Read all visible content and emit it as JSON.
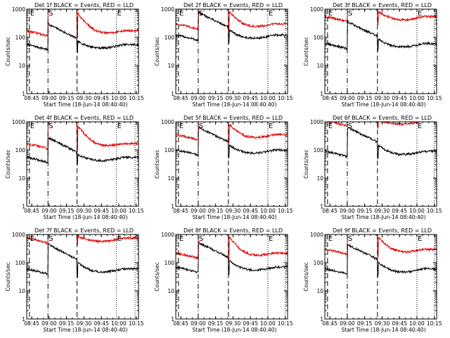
{
  "figure": {
    "background": "#ffffff",
    "colors": {
      "events": "#000000",
      "lld": "#e00000",
      "axes": "#000000"
    }
  },
  "chart_data": [
    {
      "type": "line",
      "title": "Det 1f BLACK = Events, RED = LLD",
      "xlabel": "Start Time (18-Jun-14 08:40:40)",
      "ylabel": "Counts/sec",
      "yscale": "log",
      "ylim": [
        1,
        1000
      ],
      "x_ticks": [
        "08:45",
        "09:00",
        "09:15",
        "09:30",
        "09:45",
        "10:00",
        "10:15"
      ],
      "y_ticks": [
        "1",
        "10",
        "100",
        "1000"
      ],
      "markers": [
        {
          "label": "E",
          "time": "08:43",
          "style": "dash"
        },
        {
          "label": "S",
          "time": "08:59",
          "style": "dashdot"
        },
        {
          "label": "",
          "time": "09:24",
          "style": "dash"
        },
        {
          "label": "E",
          "time": "09:58",
          "style": "dot"
        },
        {
          "label": "",
          "time": "10:14",
          "style": "dot"
        }
      ],
      "series": [
        {
          "name": "Events",
          "color": "#000000",
          "baseline": 55,
          "spike_time": "09:24",
          "spike_value": 75
        },
        {
          "name": "LLD",
          "color": "#e00000",
          "baseline": 170,
          "spike_time": "09:24",
          "spike_value": 800
        }
      ]
    },
    {
      "type": "line",
      "title": "Det 2f BLACK = Events, RED = LLD",
      "xlabel": "Start Time (18-Jun-14 08:40:40)",
      "ylabel": "Counts/sec",
      "yscale": "log",
      "ylim": [
        1,
        1000
      ],
      "x_ticks": [
        "08:45",
        "09:00",
        "09:15",
        "09:30",
        "09:45",
        "10:00",
        "10:15"
      ],
      "y_ticks": [
        "1",
        "10",
        "100",
        "1000"
      ],
      "markers": [
        {
          "label": "E",
          "time": "08:43",
          "style": "dash"
        },
        {
          "label": "S",
          "time": "09:00",
          "style": "dashdot"
        },
        {
          "label": "",
          "time": "09:26",
          "style": "dash"
        },
        {
          "label": "E",
          "time": "10:00",
          "style": "dot"
        },
        {
          "label": "",
          "time": "10:15",
          "style": "dot"
        }
      ],
      "series": [
        {
          "name": "Events",
          "color": "#000000",
          "baseline": 120,
          "spike_time": "09:26",
          "spike_value": 190
        },
        {
          "name": "LLD",
          "color": "#e00000",
          "baseline": 300,
          "spike_time": "09:26",
          "spike_value": 900
        }
      ]
    },
    {
      "type": "line",
      "title": "Det 3f BLACK = Events, RED = LLD",
      "xlabel": "Start Time (18-Jun-14 08:40:40)",
      "ylabel": "Counts/sec",
      "yscale": "log",
      "ylim": [
        1,
        1000
      ],
      "x_ticks": [
        "08:45",
        "09:00",
        "09:15",
        "09:30",
        "09:45",
        "10:00",
        "10:15"
      ],
      "y_ticks": [
        "1",
        "10",
        "100",
        "1000"
      ],
      "markers": [
        {
          "label": "E",
          "time": "08:43",
          "style": "dash"
        },
        {
          "label": "S",
          "time": "09:00",
          "style": "dashdot"
        },
        {
          "label": "",
          "time": "09:26",
          "style": "dash"
        },
        {
          "label": "E",
          "time": "10:00",
          "style": "dot"
        },
        {
          "label": "",
          "time": "10:15",
          "style": "dot"
        }
      ],
      "series": [
        {
          "name": "Events",
          "color": "#000000",
          "baseline": 60,
          "spike_time": "09:26",
          "spike_value": 90
        },
        {
          "name": "LLD",
          "color": "#e00000",
          "baseline": 550,
          "spike_time": "09:26",
          "spike_value": 900
        }
      ]
    },
    {
      "type": "line",
      "title": "Det 4f BLACK = Events, RED = LLD",
      "xlabel": "Start Time (18-Jun-14 08:40:40)",
      "ylabel": "Counts/sec",
      "yscale": "log",
      "ylim": [
        1,
        1000
      ],
      "x_ticks": [
        "08:45",
        "09:00",
        "09:15",
        "09:30",
        "09:45",
        "10:00",
        "10:15"
      ],
      "y_ticks": [
        "1",
        "10",
        "100",
        "1000"
      ],
      "markers": [
        {
          "label": "E",
          "time": "08:43",
          "style": "dash"
        },
        {
          "label": "S",
          "time": "08:59",
          "style": "dashdot"
        },
        {
          "label": "",
          "time": "09:24",
          "style": "dash"
        },
        {
          "label": "E",
          "time": "09:58",
          "style": "dot"
        },
        {
          "label": "",
          "time": "10:14",
          "style": "dot"
        }
      ],
      "series": [
        {
          "name": "Events",
          "color": "#000000",
          "baseline": 55,
          "spike_time": "09:24",
          "spike_value": 70
        },
        {
          "name": "LLD",
          "color": "#e00000",
          "baseline": 170,
          "spike_time": "09:24",
          "spike_value": 800
        }
      ]
    },
    {
      "type": "line",
      "title": "Det 5f BLACK = Events, RED = LLD",
      "xlabel": "Start Time (18-Jun-14 08:40:40)",
      "ylabel": "Counts/sec",
      "yscale": "log",
      "ylim": [
        1,
        1000
      ],
      "x_ticks": [
        "08:45",
        "09:00",
        "09:15",
        "09:30",
        "09:45",
        "10:00",
        "10:15"
      ],
      "y_ticks": [
        "1",
        "10",
        "100",
        "1000"
      ],
      "markers": [
        {
          "label": "E",
          "time": "08:43",
          "style": "dash"
        },
        {
          "label": "S",
          "time": "09:00",
          "style": "dashdot"
        },
        {
          "label": "",
          "time": "09:26",
          "style": "dash"
        },
        {
          "label": "E",
          "time": "10:00",
          "style": "dot"
        },
        {
          "label": "",
          "time": "10:15",
          "style": "dot"
        }
      ],
      "series": [
        {
          "name": "Events",
          "color": "#000000",
          "baseline": 100,
          "spike_time": "09:26",
          "spike_value": 160
        },
        {
          "name": "LLD",
          "color": "#e00000",
          "baseline": 350,
          "spike_time": "09:26",
          "spike_value": 900
        }
      ]
    },
    {
      "type": "line",
      "title": "Det 6f BLACK = Events, RED = LLD",
      "xlabel": "Start Time (18-Jun-14 08:40:40)",
      "ylabel": "Counts/sec",
      "yscale": "log",
      "ylim": [
        1,
        1000
      ],
      "x_ticks": [
        "08:45",
        "09:00",
        "09:15",
        "09:30",
        "09:45",
        "10:00",
        "10:15"
      ],
      "y_ticks": [
        "1",
        "10",
        "100",
        "1000"
      ],
      "markers": [
        {
          "label": "E",
          "time": "08:43",
          "style": "dash"
        },
        {
          "label": "S",
          "time": "09:00",
          "style": "dashdot"
        },
        {
          "label": "",
          "time": "09:26",
          "style": "dash"
        },
        {
          "label": "E",
          "time": "10:00",
          "style": "dot"
        },
        {
          "label": "",
          "time": "10:15",
          "style": "dot"
        }
      ],
      "series": [
        {
          "name": "Events",
          "color": "#000000",
          "baseline": 90,
          "spike_time": "09:26",
          "spike_value": 160
        },
        {
          "name": "LLD",
          "color": "#e00000",
          "baseline": 1100,
          "spike_time": "09:26",
          "spike_value": 1200
        }
      ]
    },
    {
      "type": "line",
      "title": "Det 7f BLACK = Events, RED = LLD",
      "xlabel": "Start Time (18-Jun-14 08:40:40)",
      "ylabel": "Counts/sec",
      "yscale": "log",
      "ylim": [
        1,
        1000
      ],
      "x_ticks": [
        "08:45",
        "09:00",
        "09:15",
        "09:30",
        "09:45",
        "10:00",
        "10:15"
      ],
      "y_ticks": [
        "1",
        "10",
        "100",
        "1000"
      ],
      "markers": [
        {
          "label": "E",
          "time": "08:43",
          "style": "dash"
        },
        {
          "label": "S",
          "time": "08:59",
          "style": "dashdot"
        },
        {
          "label": "",
          "time": "09:24",
          "style": "dash"
        },
        {
          "label": "E",
          "time": "09:58",
          "style": "dot"
        },
        {
          "label": "",
          "time": "10:14",
          "style": "dot"
        }
      ],
      "series": [
        {
          "name": "Events",
          "color": "#000000",
          "baseline": 60,
          "spike_time": "09:24",
          "spike_value": 110
        },
        {
          "name": "LLD",
          "color": "#e00000",
          "baseline": 750,
          "spike_time": "09:24",
          "spike_value": 900
        }
      ]
    },
    {
      "type": "line",
      "title": "Det 8f BLACK = Events, RED = LLD",
      "xlabel": "Start Time (18-Jun-14 08:40:40)",
      "ylabel": "Counts/sec",
      "yscale": "log",
      "ylim": [
        1,
        1000
      ],
      "x_ticks": [
        "08:45",
        "09:00",
        "09:15",
        "09:30",
        "09:45",
        "10:00",
        "10:15"
      ],
      "y_ticks": [
        "1",
        "10",
        "100",
        "1000"
      ],
      "markers": [
        {
          "label": "E",
          "time": "08:43",
          "style": "dash"
        },
        {
          "label": "S",
          "time": "09:00",
          "style": "dashdot"
        },
        {
          "label": "",
          "time": "09:26",
          "style": "dash"
        },
        {
          "label": "E",
          "time": "10:00",
          "style": "dot"
        },
        {
          "label": "",
          "time": "10:15",
          "style": "dot"
        }
      ],
      "series": [
        {
          "name": "Events",
          "color": "#000000",
          "baseline": 70,
          "spike_time": "09:26",
          "spike_value": 130
        },
        {
          "name": "LLD",
          "color": "#e00000",
          "baseline": 220,
          "spike_time": "09:26",
          "spike_value": 900
        }
      ]
    },
    {
      "type": "line",
      "title": "Det 9f BLACK = Events, RED = LLD",
      "xlabel": "Start Time (18-Jun-14 08:40:40)",
      "ylabel": "Counts/sec",
      "yscale": "log",
      "ylim": [
        1,
        1000
      ],
      "x_ticks": [
        "08:45",
        "09:00",
        "09:15",
        "09:30",
        "09:45",
        "10:00",
        "10:15"
      ],
      "y_ticks": [
        "1",
        "10",
        "100",
        "1000"
      ],
      "markers": [
        {
          "label": "E",
          "time": "08:43",
          "style": "dash"
        },
        {
          "label": "S",
          "time": "09:00",
          "style": "dashdot"
        },
        {
          "label": "",
          "time": "09:26",
          "style": "dash"
        },
        {
          "label": "E",
          "time": "10:00",
          "style": "dot"
        },
        {
          "label": "",
          "time": "10:15",
          "style": "dot"
        }
      ],
      "series": [
        {
          "name": "Events",
          "color": "#000000",
          "baseline": 60,
          "spike_time": "09:26",
          "spike_value": 110
        },
        {
          "name": "LLD",
          "color": "#e00000",
          "baseline": 300,
          "spike_time": "09:26",
          "spike_value": 900
        }
      ]
    }
  ]
}
